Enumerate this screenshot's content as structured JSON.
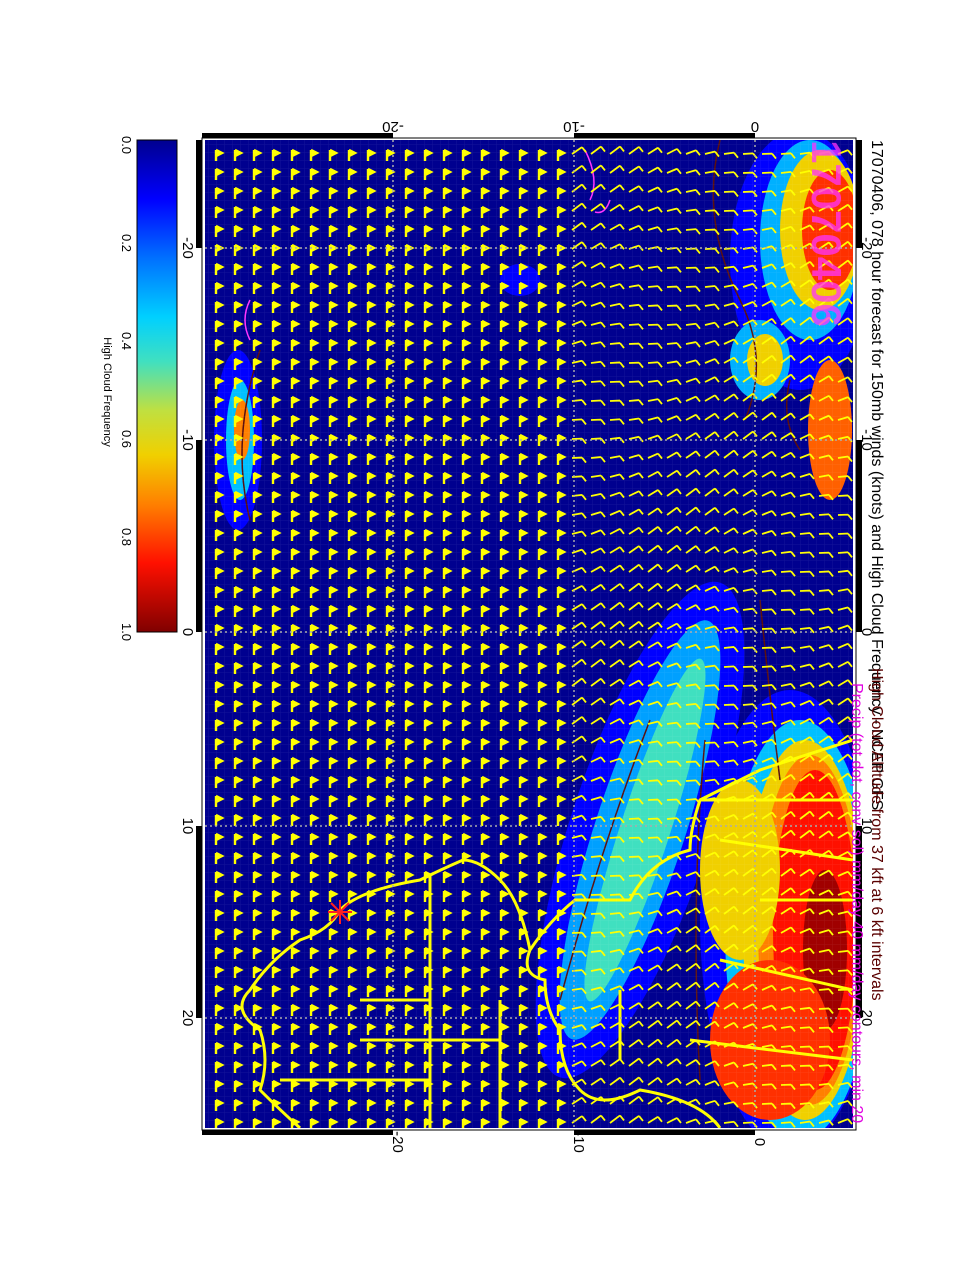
{
  "map": {
    "title": "17070406, 078 hour forecast for 150mb winds (knots) and High Cloud Frequency - NCEP GFS",
    "stamp": "17070406",
    "subtitle_1": "High Cloud Altitude from 37 kft at 6 kft intervals",
    "subtitle_2": "Precip (tot dot, conv sol) mm/day 40 mm/day contours, min 20",
    "lon_ticks": [
      "-20",
      "-10",
      "0",
      "10",
      "20"
    ],
    "lat_ticks": [
      "0",
      "-10",
      "-20"
    ],
    "colorbar": {
      "label": "High Cloud Frequency",
      "ticks": [
        "0.0",
        "0.2",
        "0.4",
        "0.6",
        "0.8",
        "1.0"
      ]
    },
    "colors": {
      "title": "#000000",
      "stamp": "#ff33ff",
      "subtitle_1": "#5a0000",
      "subtitle_2": "#e000e0",
      "barb": "#ffff00",
      "coast": "#ffff00",
      "ocean_base": "#00008f"
    }
  }
}
